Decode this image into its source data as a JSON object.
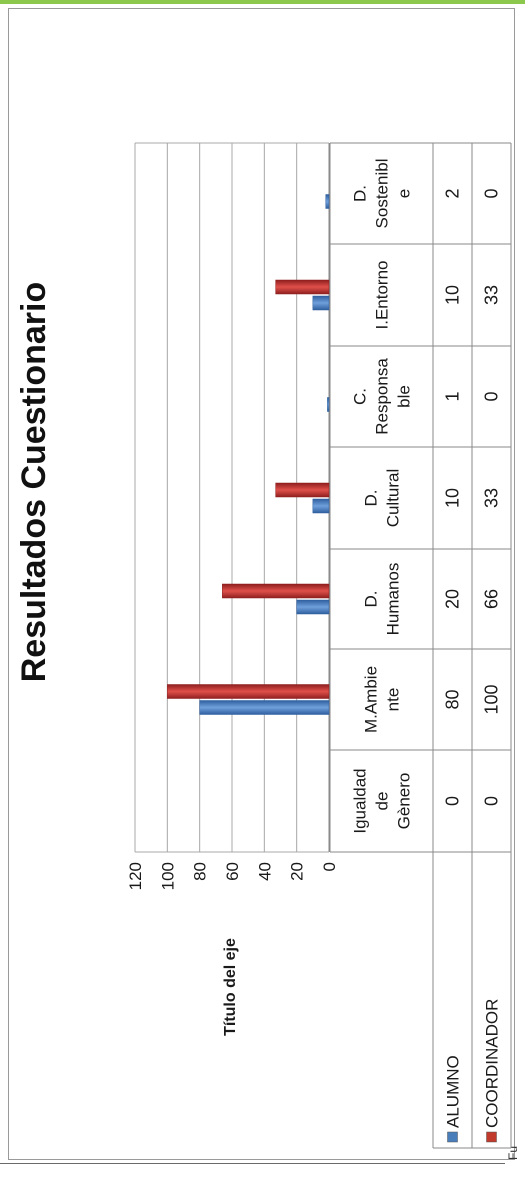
{
  "chart_data": {
    "type": "bar",
    "title": "Resultados  Cuestionario",
    "ylabel": "Título del eje",
    "ylim": [
      0,
      120
    ],
    "yticks": [
      "0",
      "20",
      "40",
      "60",
      "80",
      "100",
      "120"
    ],
    "grid": true,
    "legend_placement": "left, inside data table",
    "categories": [
      [
        "Igualdad",
        "de",
        "Gènero"
      ],
      [
        "M.Ambie",
        "nte"
      ],
      [
        "D.",
        "Humanos"
      ],
      [
        "D.",
        "Cultural"
      ],
      [
        "C.",
        "Responsa",
        "ble"
      ],
      [
        "I.Entorno"
      ],
      [
        "D.",
        "Sostenibl",
        "e"
      ]
    ],
    "series": [
      {
        "name": "ALUMNO",
        "values": [
          0,
          80,
          20,
          10,
          1,
          10,
          2
        ],
        "labels": [
          "0",
          "80",
          "20",
          "10",
          "1",
          "10",
          "2"
        ],
        "color": "#4a7ebb"
      },
      {
        "name": "COORDINADOR",
        "values": [
          0,
          100,
          66,
          33,
          0,
          33,
          0
        ],
        "labels": [
          "0",
          "100",
          "66",
          "33",
          "0",
          "33",
          "0"
        ],
        "color": "#c0392b"
      }
    ]
  },
  "footer_fragment": "Fu"
}
